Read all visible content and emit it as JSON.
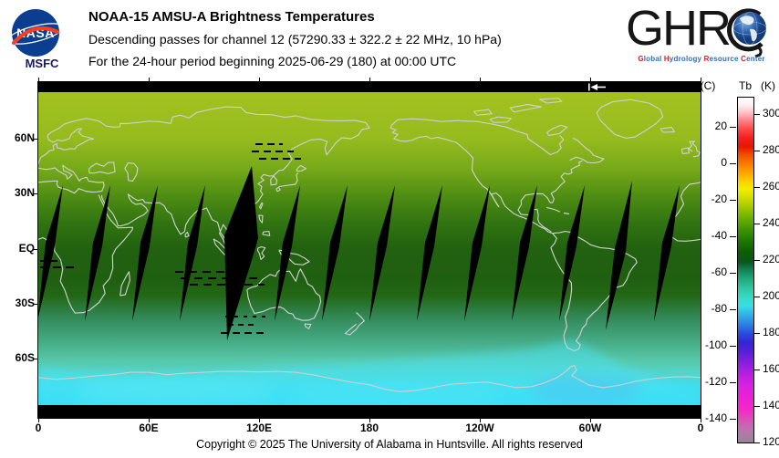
{
  "header": {
    "nasa": {
      "logo_text": "NASA",
      "center": "MSFC"
    },
    "title": "NOAA-15 AMSU-A Brightness Temperatures",
    "subtitle1": "Descending passes for channel 12 (57290.33 ± 322.2 ± 22 MHz, 10 hPa)",
    "subtitle2": "For the 24-hour period beginning 2025-06-29 (180) at 00:00 UTC",
    "ghrc": {
      "big": "GHR",
      "tagline": [
        [
          "G",
          "lobal "
        ],
        [
          "H",
          "ydrology "
        ],
        [
          "R",
          "esource "
        ],
        [
          "C",
          "enter"
        ]
      ]
    }
  },
  "colors": {
    "nasa_blue": "#0b3d91",
    "nasa_red": "#fc3d21",
    "tag_red": "#cf1f1f",
    "tag_blue": "#2e6fc0",
    "coastline": "#cdd0cd",
    "no_data": "#000000"
  },
  "map_axes": {
    "lat_ticks": [
      "60N",
      "30N",
      "EQ",
      "30S",
      "60S"
    ],
    "lon_ticks": [
      "0",
      "60E",
      "120E",
      "180",
      "120W",
      "60W",
      "0"
    ]
  },
  "colorbar": {
    "header_c": "(C)",
    "header_tb": "Tb",
    "header_k": "(K)",
    "k_ticks": [
      300,
      280,
      260,
      240,
      220,
      200,
      180,
      160,
      140,
      120
    ],
    "c_ticks": [
      20,
      0,
      -20,
      -40,
      -60,
      -80,
      -100,
      -120,
      -140
    ]
  },
  "footer": {
    "copyright": "Copyright © 2025 The University of Alabama in Huntsville.  All rights reserved"
  },
  "chart_data": {
    "type": "heatmap",
    "title": "NOAA-15 AMSU-A Brightness Temperatures",
    "subtitle": "Descending passes for channel 12 (57290.33 ± 322.2 ± 22 MHz, 10 hPa)",
    "period": "24-hour period beginning 2025-06-29 (180) at 00:00 UTC",
    "projection": "equirectangular world map, longitude 0E eastward through 180 to 0 (360)",
    "x_axis": {
      "label": "longitude",
      "tick_labels": [
        "0",
        "60E",
        "120E",
        "180",
        "120W",
        "60W",
        "0"
      ],
      "range_deg": [
        0,
        360
      ]
    },
    "y_axis": {
      "label": "latitude",
      "tick_labels": [
        "60N",
        "30N",
        "EQ",
        "30S",
        "60S"
      ],
      "range_deg": [
        -90,
        90
      ]
    },
    "colorbar": {
      "title": "(C) Tb (K)",
      "kelvin_ticks": [
        300,
        280,
        260,
        240,
        220,
        200,
        180,
        160,
        140,
        120
      ],
      "celsius_ticks": [
        20,
        0,
        -20,
        -40,
        -60,
        -80,
        -100,
        -120,
        -140
      ],
      "range_k": [
        120,
        310
      ],
      "gradient_stops_k": {
        "310": "#ffffff",
        "300": "#ffb0b8",
        "290": "#fd4b4b",
        "280": "#ec1c00",
        "270": "#f97800",
        "260": "#f2ee00",
        "250": "#a3c800",
        "240": "#55a400",
        "230": "#1d7500",
        "220": "#0b5520",
        "210": "#22ad81",
        "200": "#36dbc8",
        "190": "#33b9e8",
        "180": "#2a4fdf",
        "170": "#3e23d6",
        "160": "#a520de",
        "150": "#d921e2",
        "140": "#f226cc",
        "130": "#cc60b4",
        "120": "#8d8591"
      }
    },
    "estimated_zonal_mean_tb_k": {
      "lat": [
        80,
        70,
        60,
        45,
        30,
        15,
        0,
        -15,
        -25,
        -30,
        -40,
        -50,
        -60,
        -68,
        -75,
        -82
      ],
      "tb_k": [
        253,
        251,
        250,
        246,
        242,
        238,
        233,
        232,
        233,
        228,
        220,
        212,
        206,
        200,
        196,
        197
      ]
    },
    "no_data_regions": "black diagonal wedge gaps between adjacent descending orbit swaths (~every 26 deg longitude, between ~32N and ~40S); black polar bars at top and bottom of map; scattered short dashed scan-line gaps",
    "grid": false,
    "legend_position": "right colorbar"
  }
}
